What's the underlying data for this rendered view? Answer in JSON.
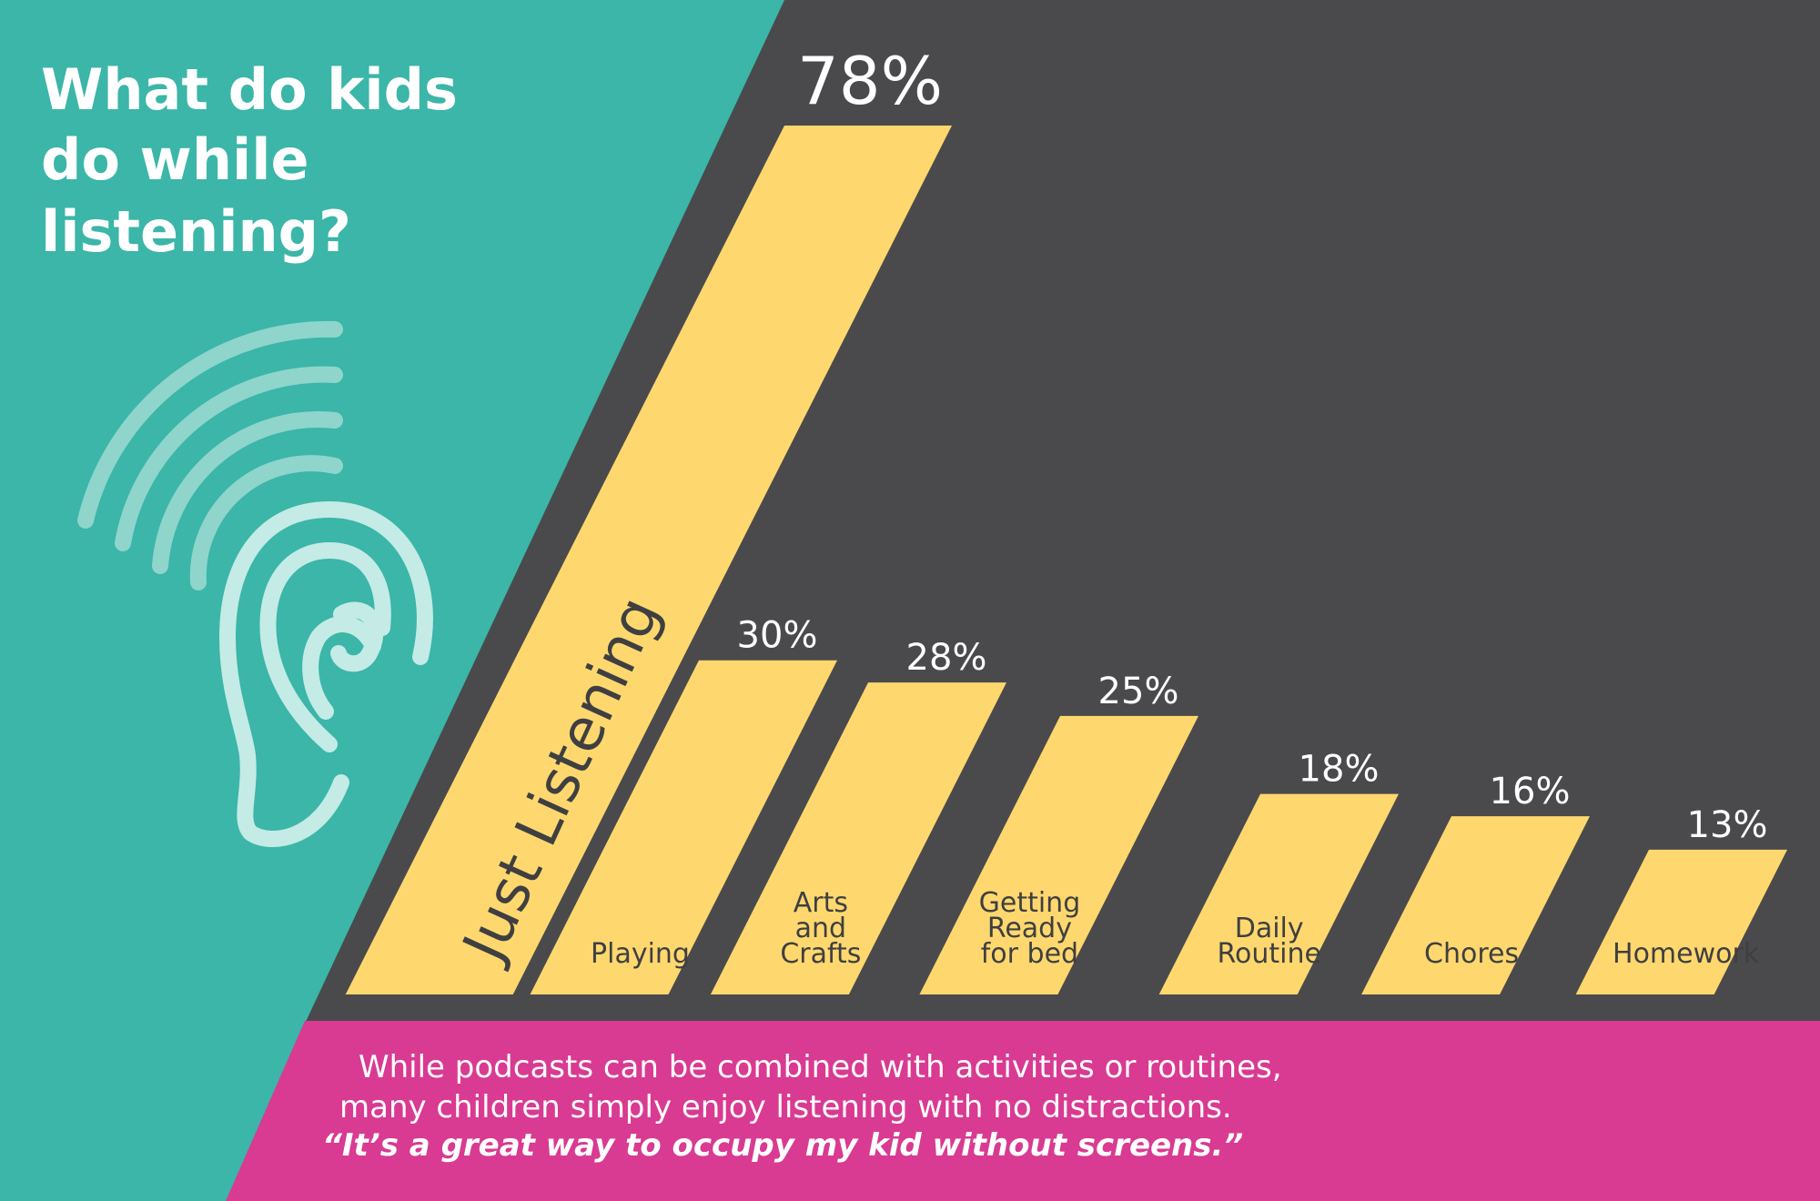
{
  "title": [
    "What do kids",
    "do while",
    "listening?"
  ],
  "colors": {
    "teal": "#3bb6a8",
    "dark": "#4a4a4c",
    "bar": "#fed86e",
    "pink": "#d93a92",
    "ear": "#c4ebe5"
  },
  "icon": "ear-sound-waves-icon",
  "chart_data": {
    "type": "bar",
    "title": "What do kids do while listening?",
    "categories": [
      "Just Listening",
      "Playing",
      "Arts and Crafts",
      "Getting Ready for bed",
      "Daily Routine",
      "Chores",
      "Homework"
    ],
    "category_lines": [
      [
        "Just Listening"
      ],
      [
        "Playing"
      ],
      [
        "Arts",
        "and",
        "Crafts"
      ],
      [
        "Getting",
        "Ready",
        "for bed"
      ],
      [
        "Daily",
        "Routine"
      ],
      [
        "Chores"
      ],
      [
        "Homework"
      ]
    ],
    "values": [
      78,
      30,
      28,
      25,
      18,
      16,
      13
    ],
    "value_labels": [
      "78%",
      "30%",
      "28%",
      "25%",
      "18%",
      "16%",
      "13%"
    ],
    "unit": "%",
    "ylim": [
      0,
      78
    ],
    "grid": false,
    "legend": "none"
  },
  "footer": {
    "line1": "While podcasts can be combined with activities or routines,",
    "line2": "many children simply enjoy listening with no distractions.",
    "quote": "“It’s a great way to occupy my kid without screens.”"
  }
}
